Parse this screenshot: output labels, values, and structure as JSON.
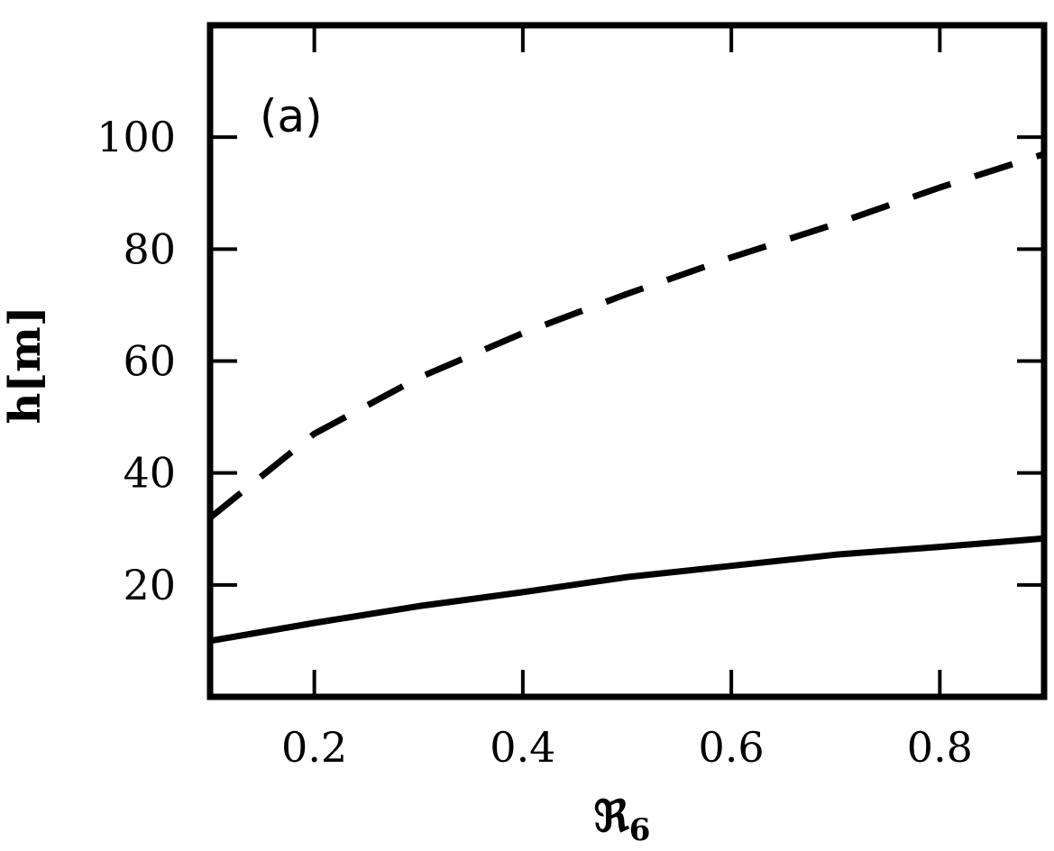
{
  "chart_data": {
    "type": "line",
    "panel_label": "(a)",
    "xlabel": "ℜ",
    "xlabel_sub": "6",
    "ylabel": "h[m]",
    "xlim": [
      0.1,
      0.9
    ],
    "ylim": [
      0,
      120
    ],
    "xticks": [
      0.2,
      0.4,
      0.6,
      0.8
    ],
    "xtick_labels": [
      "0.2",
      "0.4",
      "0.6",
      "0.8"
    ],
    "yticks": [
      20,
      40,
      60,
      80,
      100
    ],
    "ytick_labels": [
      "20",
      "40",
      "60",
      "80",
      "100"
    ],
    "grid": false,
    "series": [
      {
        "style": "solid",
        "color": "#000000",
        "x": [
          0.1,
          0.2,
          0.3,
          0.4,
          0.5,
          0.6,
          0.7,
          0.8,
          0.9
        ],
        "y": [
          10,
          13.2,
          16.2,
          18.7,
          21.4,
          23.4,
          25.4,
          26.8,
          28.3
        ]
      },
      {
        "style": "dashed",
        "color": "#000000",
        "x": [
          0.1,
          0.2,
          0.3,
          0.4,
          0.5,
          0.6,
          0.7,
          0.8,
          0.9
        ],
        "y": [
          32,
          47,
          57,
          65,
          72,
          78.5,
          84.5,
          91,
          97
        ]
      }
    ]
  }
}
